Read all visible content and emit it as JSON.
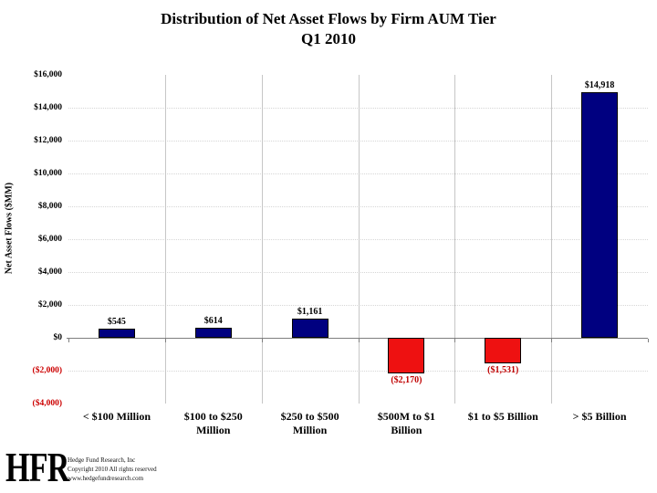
{
  "title": {
    "line1": "Distribution of Net Asset Flows by Firm AUM Tier",
    "line2": "Q1 2010"
  },
  "chart_data": {
    "type": "bar",
    "title": "Distribution of Net Asset Flows by Firm AUM Tier Q1 2010",
    "xlabel": "",
    "ylabel": "Net Asset Flows ($MM)",
    "ylim": [
      -4000,
      16000
    ],
    "ytick_values": [
      16000,
      14000,
      12000,
      10000,
      8000,
      6000,
      4000,
      2000,
      0,
      -2000,
      -4000
    ],
    "ytick_labels": [
      "$16,000",
      "$14,000",
      "$12,000",
      "$10,000",
      "$8,000",
      "$6,000",
      "$4,000",
      "$2,000",
      "$0",
      "($2,000)",
      "($4,000)"
    ],
    "categories": [
      "< $100 Million",
      "$100 to $250 Million",
      "$250 to $500 Million",
      "$500M to $1 Billion",
      "$1 to $5 Billion",
      "> $5 Billion"
    ],
    "values": [
      545,
      614,
      1161,
      -2170,
      -1531,
      14918
    ],
    "value_labels": [
      "$545",
      "$614",
      "$1,161",
      "($2,170)",
      "($1,531)",
      "$14,918"
    ],
    "legend": null,
    "grid": "vertical category separators solid, horizontal dotted",
    "colors": {
      "positive_bar": "#000080",
      "negative_bar": "#ee1111",
      "negative_text": "#c00000",
      "gridline": "#c6c6c6",
      "axis_line": "#7f7f7f"
    }
  },
  "footer": {
    "logo": "HFR",
    "line1": "Hedge Fund Research, Inc",
    "line2": "Copyright 2010  All rights reserved",
    "line3": "www.hedgefundresearch.com"
  }
}
